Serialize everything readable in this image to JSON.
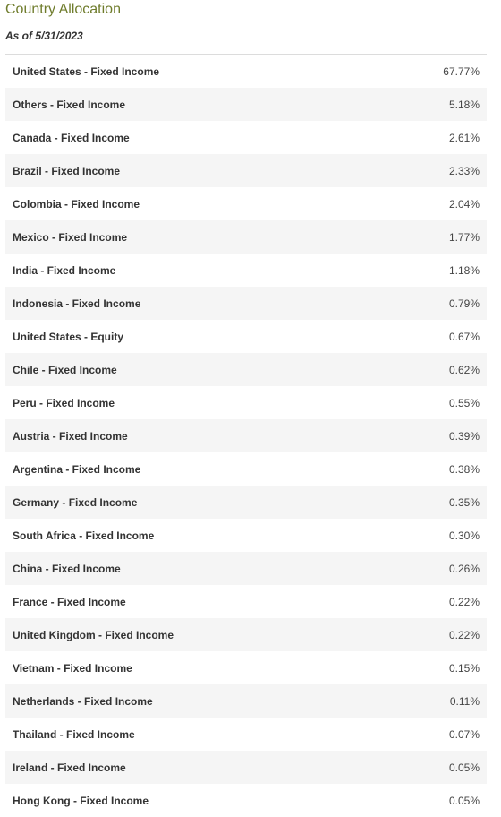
{
  "widget": {
    "title": "Country Allocation",
    "as_of": "As of 5/31/2023"
  },
  "rows": [
    {
      "name": "United States - Fixed Income",
      "value": "67.77%"
    },
    {
      "name": "Others - Fixed Income",
      "value": "5.18%"
    },
    {
      "name": "Canada - Fixed Income",
      "value": "2.61%"
    },
    {
      "name": "Brazil - Fixed Income",
      "value": "2.33%"
    },
    {
      "name": "Colombia - Fixed Income",
      "value": "2.04%"
    },
    {
      "name": "Mexico - Fixed Income",
      "value": "1.77%"
    },
    {
      "name": "India - Fixed Income",
      "value": "1.18%"
    },
    {
      "name": "Indonesia - Fixed Income",
      "value": "0.79%"
    },
    {
      "name": "United States - Equity",
      "value": "0.67%"
    },
    {
      "name": "Chile - Fixed Income",
      "value": "0.62%"
    },
    {
      "name": "Peru - Fixed Income",
      "value": "0.55%"
    },
    {
      "name": "Austria - Fixed Income",
      "value": "0.39%"
    },
    {
      "name": "Argentina - Fixed Income",
      "value": "0.38%"
    },
    {
      "name": "Germany - Fixed Income",
      "value": "0.35%"
    },
    {
      "name": "South Africa - Fixed Income",
      "value": "0.30%"
    },
    {
      "name": "China - Fixed Income",
      "value": "0.26%"
    },
    {
      "name": "France - Fixed Income",
      "value": "0.22%"
    },
    {
      "name": "United Kingdom - Fixed Income",
      "value": "0.22%"
    },
    {
      "name": "Vietnam - Fixed Income",
      "value": "0.15%"
    },
    {
      "name": "Netherlands - Fixed Income",
      "value": "0.11%"
    },
    {
      "name": "Thailand - Fixed Income",
      "value": "0.07%"
    },
    {
      "name": "Ireland - Fixed Income",
      "value": "0.05%"
    },
    {
      "name": "Hong Kong - Fixed Income",
      "value": "0.05%"
    }
  ],
  "colors": {
    "title": "#6f7c2c",
    "stripe": "#f5f5f5",
    "divider": "#dcdcdc"
  }
}
